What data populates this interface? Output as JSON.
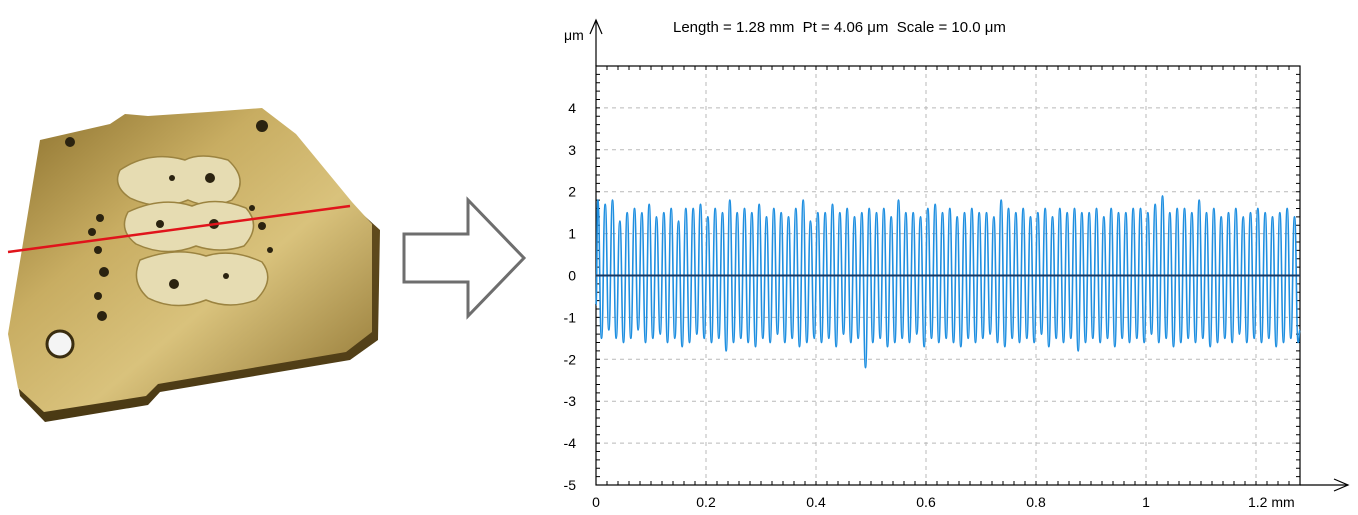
{
  "photo": {
    "description_name": "brass-plate-specimen",
    "colors": {
      "plate": "#b89a4e",
      "plate_shadow": "#7a6228",
      "section_line": "#e0141b"
    }
  },
  "arrow": {
    "icon": "hollow-right-arrow-icon",
    "color": "#6e6e6e"
  },
  "chart_data": {
    "type": "line",
    "title": "Length = 1.28 mm  Pt = 4.06 μm  Scale = 10.0 μm",
    "xlabel": "mm",
    "ylabel": "μm",
    "xlim": [
      0,
      1.28
    ],
    "ylim": [
      -5,
      5
    ],
    "x_ticks": [
      0,
      0.2,
      0.4,
      0.6,
      0.8,
      1,
      1.2
    ],
    "x_tick_labels": [
      "0",
      "0.2",
      "0.4",
      "0.6",
      "0.8",
      "1",
      "1.2 mm"
    ],
    "y_ticks": [
      4,
      3,
      2,
      1,
      0,
      -1,
      -2,
      -3,
      -4,
      -5
    ],
    "y_tick_labels": [
      "4",
      "3",
      "2",
      "1",
      "0",
      "-1",
      "-2",
      "-3",
      "-4",
      "-5"
    ],
    "grid": true,
    "series": [
      {
        "color": "#1f8fe0",
        "x_start": 0,
        "x_end": 1.28,
        "cycles": 96,
        "peak_values": [
          1.8,
          1.7,
          1.8,
          1.3,
          1.5,
          1.6,
          1.5,
          1.7,
          1.4,
          1.5,
          1.6,
          1.3,
          1.6,
          1.6,
          1.7,
          1.4,
          1.6,
          1.5,
          1.8,
          1.5,
          1.6,
          1.5,
          1.7,
          1.4,
          1.6,
          1.5,
          1.4,
          1.6,
          1.8,
          1.3,
          1.5,
          1.5,
          1.7,
          1.5,
          1.6,
          1.4,
          1.5,
          1.6,
          1.5,
          1.6,
          1.4,
          1.8,
          1.5,
          1.5,
          1.4,
          1.6,
          1.7,
          1.5,
          1.6,
          1.4,
          1.5,
          1.6,
          1.5,
          1.5,
          1.4,
          1.8,
          1.6,
          1.5,
          1.6,
          1.4,
          1.5,
          1.6,
          1.4,
          1.6,
          1.5,
          1.6,
          1.5,
          1.5,
          1.6,
          1.4,
          1.6,
          1.5,
          1.5,
          1.6,
          1.6,
          1.5,
          1.7,
          1.9,
          1.5,
          1.6,
          1.6,
          1.5,
          1.8,
          1.5,
          1.6,
          1.4,
          1.5,
          1.6,
          1.4,
          1.5,
          1.6,
          1.5,
          1.4,
          1.5,
          1.6,
          1.4
        ],
        "trough_values": [
          -1.5,
          -1.3,
          -1.5,
          -1.6,
          -1.5,
          -1.3,
          -1.6,
          -1.5,
          -1.4,
          -1.6,
          -1.5,
          -1.7,
          -1.6,
          -1.4,
          -1.5,
          -1.6,
          -1.5,
          -1.8,
          -1.6,
          -1.5,
          -1.6,
          -1.7,
          -1.5,
          -1.6,
          -1.4,
          -1.6,
          -1.5,
          -1.7,
          -1.6,
          -1.5,
          -1.6,
          -1.5,
          -1.7,
          -1.4,
          -1.6,
          -1.5,
          -2.2,
          -1.6,
          -1.5,
          -1.7,
          -1.6,
          -1.5,
          -1.6,
          -1.4,
          -1.7,
          -1.5,
          -1.6,
          -1.5,
          -1.6,
          -1.7,
          -1.5,
          -1.6,
          -1.5,
          -1.4,
          -1.6,
          -1.7,
          -1.5,
          -1.6,
          -1.5,
          -1.6,
          -1.4,
          -1.7,
          -1.5,
          -1.6,
          -1.5,
          -1.8,
          -1.6,
          -1.5,
          -1.6,
          -1.5,
          -1.7,
          -1.5,
          -1.6,
          -1.5,
          -1.6,
          -1.4,
          -1.6,
          -1.5,
          -1.7,
          -1.6,
          -1.5,
          -1.6,
          -1.5,
          -1.7,
          -1.6,
          -1.5,
          -1.6,
          -1.4,
          -1.6,
          -1.5,
          -1.6,
          -1.5,
          -1.7,
          -1.6,
          -1.5,
          -1.6
        ]
      }
    ],
    "zero_line_color": "#1a3a63"
  }
}
